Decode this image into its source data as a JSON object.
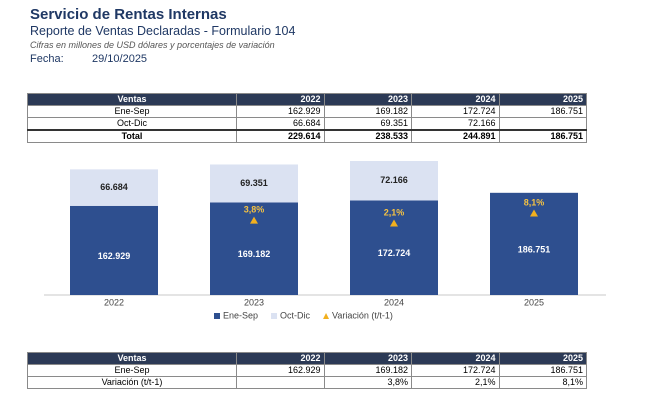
{
  "header": {
    "title": "Servicio de Rentas Internas",
    "subtitle": "Reporte de Ventas Declaradas - Formulario 104",
    "note": "Cifras en millones de USD dólares y porcentajes de variación",
    "date_label": "Fecha:",
    "date": "29/10/2025"
  },
  "table1": {
    "header": [
      "Ventas",
      "2022",
      "2023",
      "2024",
      "2025"
    ],
    "rows": [
      [
        "Ene-Sep",
        "162.929",
        "169.182",
        "172.724",
        "186.751"
      ],
      [
        "Oct-Dic",
        "66.684",
        "69.351",
        "72.166",
        null
      ],
      [
        "Total",
        "229.614",
        "238.533",
        "244.891",
        "186.751"
      ]
    ]
  },
  "chart_data": {
    "type": "bar",
    "stacked": true,
    "categories": [
      "2022",
      "2023",
      "2024",
      "2025"
    ],
    "series": [
      {
        "name": "Ene-Sep",
        "color": "#2e4f8f",
        "values": [
          162929,
          169182,
          172724,
          186751
        ],
        "value_labels": [
          "162.929",
          "169.182",
          "172.724",
          "186.751"
        ]
      },
      {
        "name": "Oct-Dic",
        "color": "#dbe2f2",
        "values": [
          66684,
          69351,
          72166,
          null
        ],
        "value_labels": [
          "66.684",
          "69.351",
          "72.166",
          null
        ]
      },
      {
        "name": "Variación (t/t-1)",
        "type": "marker",
        "axis": "y2",
        "color": "#f2b01e",
        "values": [
          null,
          3.8,
          2.1,
          8.1
        ],
        "value_labels": [
          null,
          "3,8%",
          "2,1%",
          "8,1%"
        ]
      }
    ]
  },
  "table2": {
    "header": [
      "Ventas",
      "2022",
      "2023",
      "2024",
      "2025"
    ],
    "rows": [
      [
        "Ene-Sep",
        "162.929",
        "169.182",
        "172.724",
        "186.751"
      ],
      [
        "Variación (t/t-1)",
        null,
        "3,8%",
        "2,1%",
        "8,1%"
      ]
    ]
  }
}
